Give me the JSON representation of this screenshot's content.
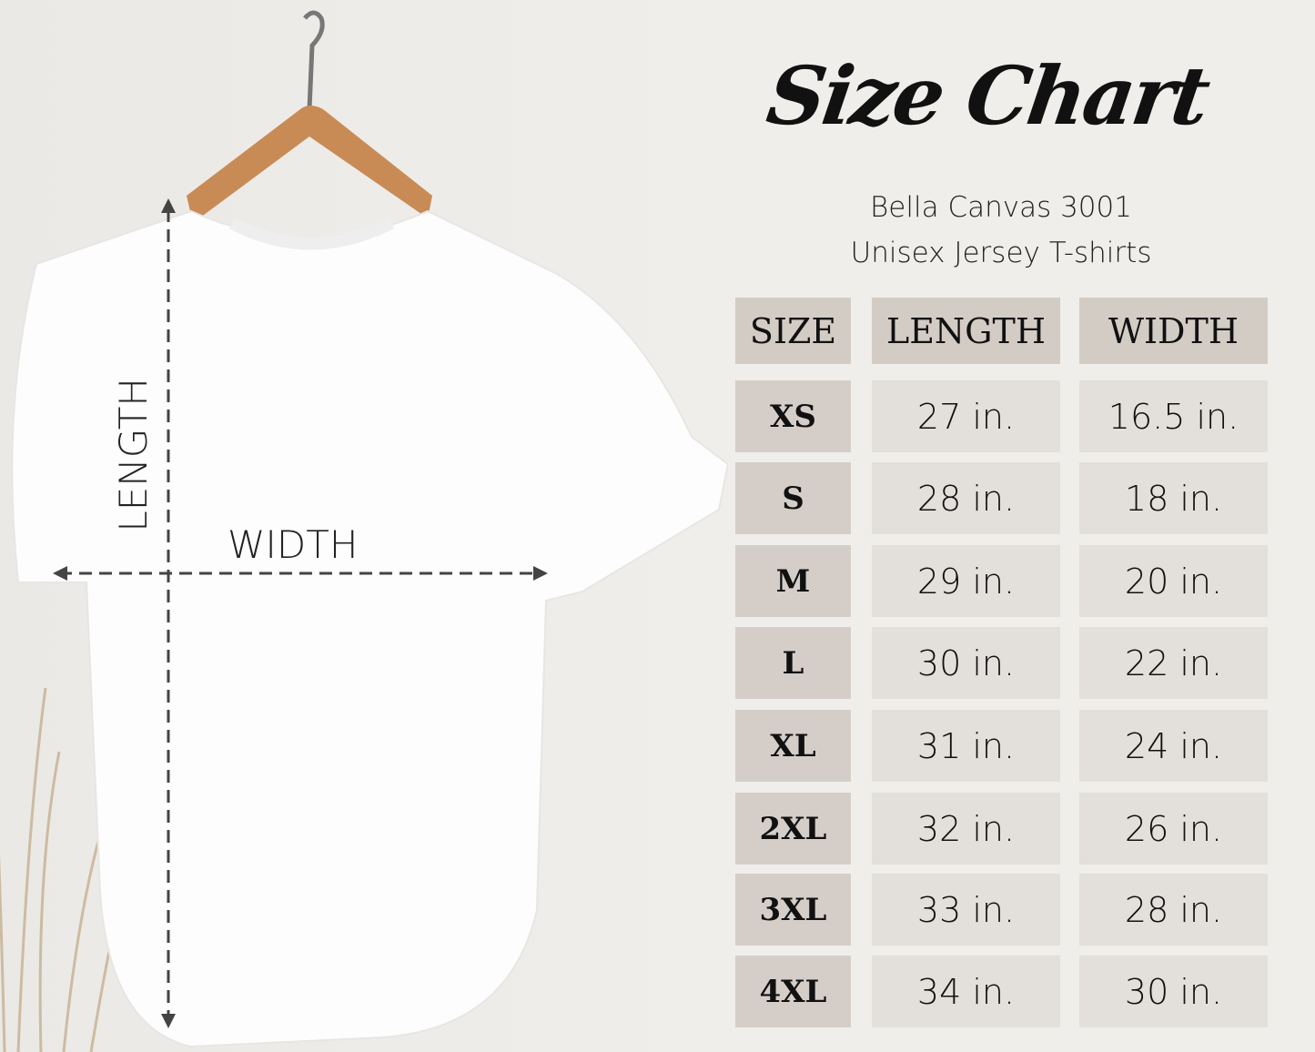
{
  "title": "Size Chart",
  "subtitle_line1": "Bella Canvas 3001",
  "subtitle_line2": "Unisex Jersey T-shirts",
  "diagram": {
    "length_label": "LENGTH",
    "width_label": "WIDTH"
  },
  "table": {
    "headers": [
      "SIZE",
      "LENGTH",
      "WIDTH"
    ],
    "rows": [
      {
        "size": "XS",
        "length": "27 in.",
        "width": "16.5 in."
      },
      {
        "size": "S",
        "length": "28 in.",
        "width": "18 in."
      },
      {
        "size": "M",
        "length": "29 in.",
        "width": "20 in."
      },
      {
        "size": "L",
        "length": "30 in.",
        "width": "22 in."
      },
      {
        "size": "XL",
        "length": "31 in.",
        "width": "24 in."
      },
      {
        "size": "2XL",
        "length": "32 in.",
        "width": "26 in."
      },
      {
        "size": "3XL",
        "length": "33 in.",
        "width": "28 in."
      },
      {
        "size": "4XL",
        "length": "34 in.",
        "width": "30 in."
      }
    ]
  },
  "colors": {
    "background": "#f0eeea",
    "header_cell": "#d3ccc5",
    "size_cell": "#d5cec8",
    "value_cell": "#e3dfdb"
  }
}
